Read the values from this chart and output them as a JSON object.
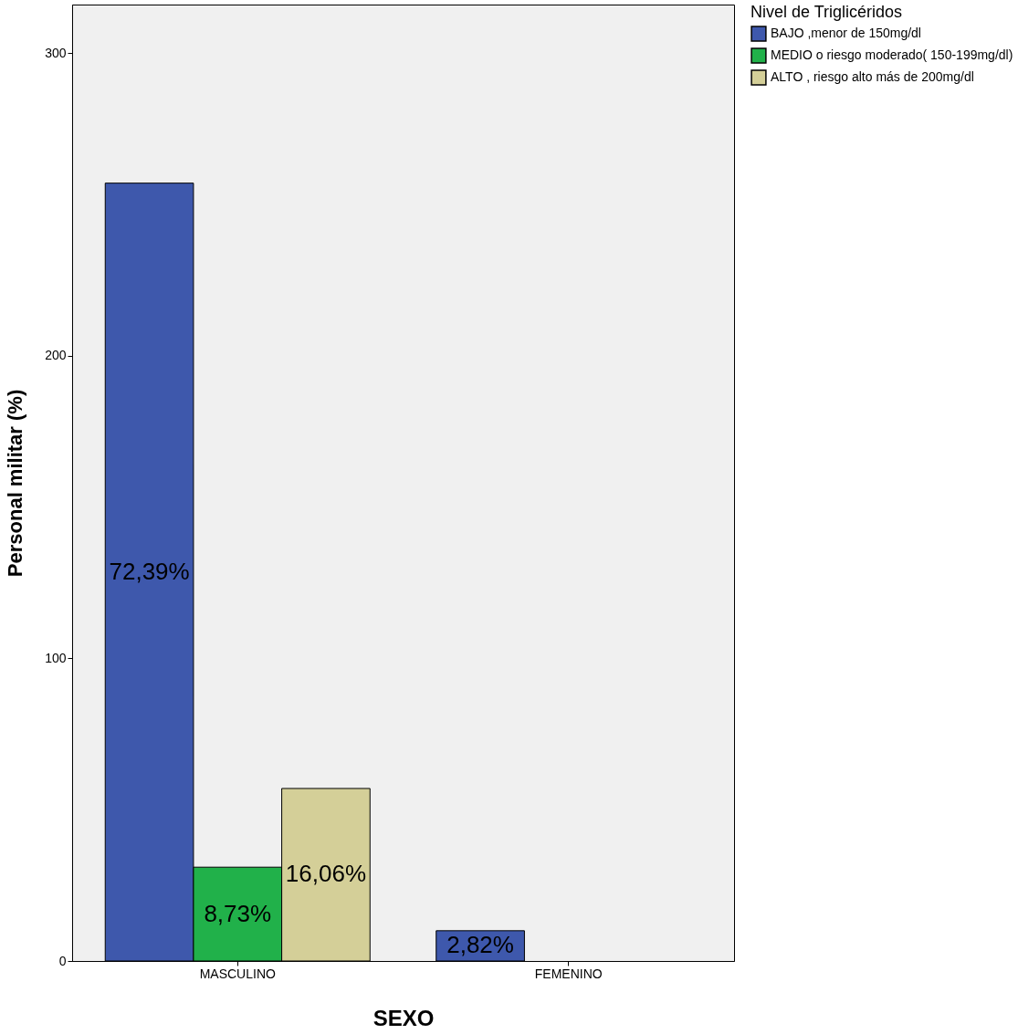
{
  "chart_data": {
    "type": "bar",
    "xlabel": "SEXO",
    "ylabel": "Personal militar (%)",
    "legend_title": "Nivel de Triglicéridos",
    "categories": [
      "MASCULINO",
      "FEMENINO"
    ],
    "series": [
      {
        "name": "BAJO ,menor de  150mg/dl",
        "color": "#3e58ac",
        "values": [
          257,
          10
        ]
      },
      {
        "name": "MEDIO o riesgo moderado( 150-199mg/dl)",
        "color": "#21b14a",
        "values": [
          31,
          null
        ]
      },
      {
        "name": "ALTO , riesgo alto más de 200mg/dl",
        "color": "#d4cf98",
        "values": [
          57,
          null
        ]
      }
    ],
    "annotations": [
      "72,39%",
      "2,82%",
      "8,73%",
      "16,06%"
    ],
    "ylim": [
      0,
      316
    ],
    "yticks": [
      0,
      100,
      200,
      300
    ],
    "grid": false,
    "legend": "right"
  }
}
